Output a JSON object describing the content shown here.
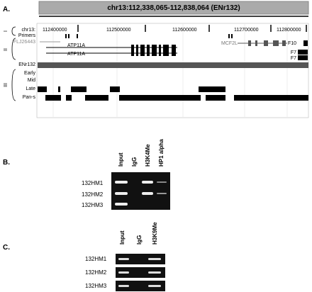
{
  "panel_a": {
    "label": "A.",
    "title": "chr13:112,338,065-112,838,064 (ENr132)",
    "groups": [
      "I",
      "II",
      "III"
    ],
    "tracks": [
      "chr13:",
      "Primers",
      "FLJ26443",
      "ENr132",
      "Early",
      "Mid",
      "Late",
      "Pan-s"
    ],
    "positions": [
      "112400000",
      "112500000",
      "112600000",
      "112700000",
      "112800000"
    ],
    "genes": [
      "ATP11A",
      "ATP11A",
      "MCF2L",
      "F10",
      "F7",
      "F7"
    ]
  },
  "panel_b": {
    "label": "B.",
    "lanes": [
      "Input",
      "IgG",
      "H3K4Me",
      "HP1 alpha"
    ],
    "rows": [
      "132HM1",
      "132HM2",
      "132HM3"
    ]
  },
  "panel_c": {
    "label": "C.",
    "lanes": [
      "Input",
      "IgG",
      "H3K9Me"
    ],
    "rows": [
      "132HM1",
      "132HM2",
      "132HM3"
    ]
  }
}
